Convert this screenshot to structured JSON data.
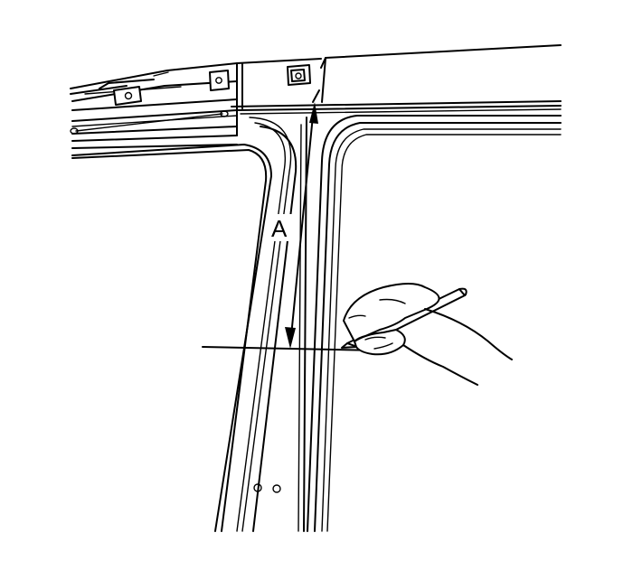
{
  "diagram": {
    "dimension_label": "A",
    "colors": {
      "line": "#000000",
      "background": "#ffffff"
    }
  }
}
